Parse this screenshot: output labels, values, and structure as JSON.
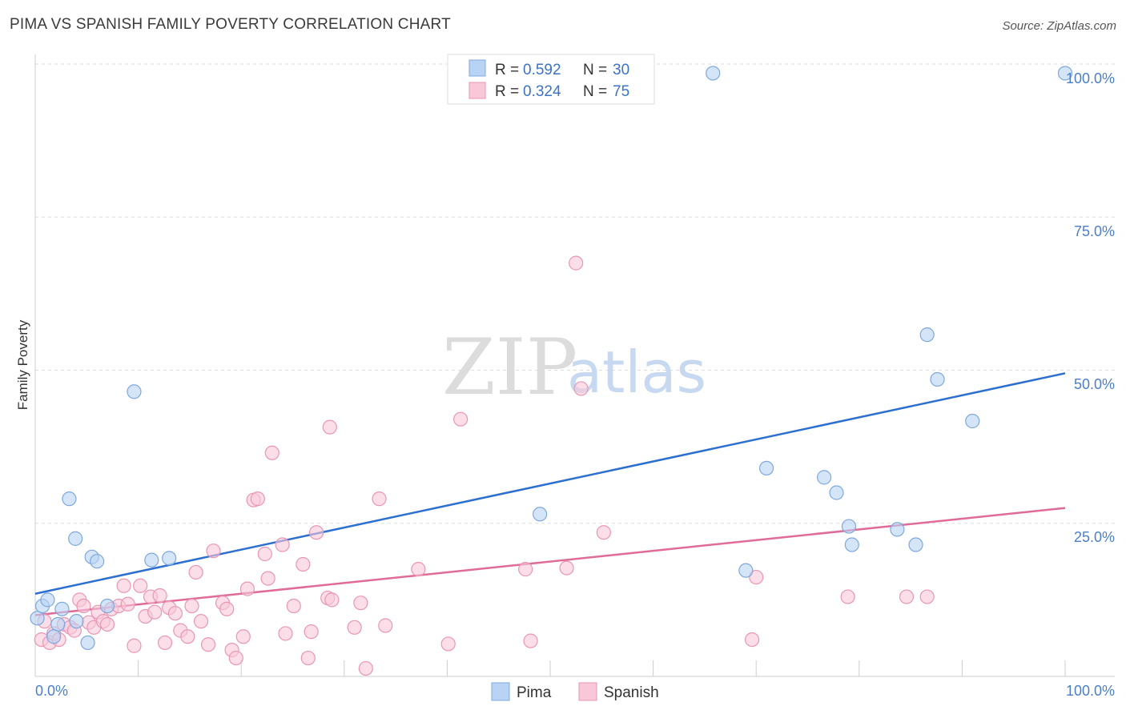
{
  "title": "PIMA VS SPANISH FAMILY POVERTY CORRELATION CHART",
  "source": "Source: ZipAtlas.com",
  "watermark": {
    "zip": "ZIP",
    "atlas": "atlas"
  },
  "legend_top": [
    {
      "r_label": "R =",
      "r_value": "0.592",
      "n_label": "N =",
      "n_value": "30"
    },
    {
      "r_label": "R =",
      "r_value": "0.324",
      "n_label": "N =",
      "n_value": "75"
    }
  ],
  "legend_bottom": [
    "Pima",
    "Spanish"
  ],
  "colors": {
    "pima_fill": "#b8d3f3",
    "pima_stroke": "#7fa8dc",
    "pima_line": "#2d6fd0",
    "spanish_fill": "#f8c8d8",
    "spanish_stroke": "#e996b4",
    "spanish_line": "#e06a98",
    "grid": "#dddddd",
    "tick_text": "#4a7fc8"
  },
  "chart_data": {
    "type": "scatter",
    "title": "PIMA VS SPANISH FAMILY POVERTY CORRELATION CHART",
    "xlabel": "",
    "ylabel": "Family Poverty",
    "xlim": [
      0,
      100
    ],
    "ylim": [
      0,
      100
    ],
    "x_tick_labels": [
      "0.0%",
      "100.0%"
    ],
    "y_tick_labels": [
      "25.0%",
      "50.0%",
      "75.0%",
      "100.0%"
    ],
    "y_ticks": [
      25,
      50,
      75,
      100
    ],
    "grid": "horizontal dashed",
    "legend_position": "top-center",
    "series": [
      {
        "name": "Pima",
        "r": 0.592,
        "n": 30,
        "trend": {
          "x": [
            0,
            100
          ],
          "y": [
            13.5,
            49.5
          ]
        },
        "points": [
          [
            0.2,
            9.5
          ],
          [
            0.7,
            11.5
          ],
          [
            1.2,
            12.5
          ],
          [
            2.2,
            8.5
          ],
          [
            1.8,
            6.5
          ],
          [
            2.6,
            11.0
          ],
          [
            3.3,
            29.0
          ],
          [
            3.9,
            22.5
          ],
          [
            4.0,
            9.0
          ],
          [
            5.1,
            5.5
          ],
          [
            5.5,
            19.5
          ],
          [
            6.0,
            18.8
          ],
          [
            7.0,
            11.5
          ],
          [
            9.6,
            46.5
          ],
          [
            11.3,
            19.0
          ],
          [
            13.0,
            19.3
          ],
          [
            49.0,
            26.5
          ],
          [
            65.8,
            98.5
          ],
          [
            69.0,
            17.3
          ],
          [
            71.0,
            34.0
          ],
          [
            76.6,
            32.5
          ],
          [
            77.8,
            30.0
          ],
          [
            79.0,
            24.5
          ],
          [
            79.3,
            21.5
          ],
          [
            83.7,
            24.0
          ],
          [
            85.5,
            21.5
          ],
          [
            86.6,
            55.8
          ],
          [
            87.6,
            48.5
          ],
          [
            91.0,
            41.7
          ],
          [
            100.0,
            98.5
          ]
        ]
      },
      {
        "name": "Spanish",
        "r": 0.324,
        "n": 75,
        "trend": {
          "x": [
            0,
            100
          ],
          "y": [
            10.0,
            27.5
          ]
        },
        "points": [
          [
            0.6,
            6.0
          ],
          [
            0.9,
            9.0
          ],
          [
            1.4,
            5.5
          ],
          [
            1.8,
            7.0
          ],
          [
            2.3,
            6.0
          ],
          [
            2.8,
            8.5
          ],
          [
            3.4,
            8.0
          ],
          [
            3.8,
            7.5
          ],
          [
            4.3,
            12.5
          ],
          [
            4.7,
            11.5
          ],
          [
            5.2,
            8.8
          ],
          [
            5.7,
            8.0
          ],
          [
            6.1,
            10.5
          ],
          [
            6.6,
            9.0
          ],
          [
            7.0,
            8.5
          ],
          [
            7.4,
            11.0
          ],
          [
            8.1,
            11.5
          ],
          [
            8.6,
            14.8
          ],
          [
            9.0,
            11.8
          ],
          [
            9.6,
            5.0
          ],
          [
            10.2,
            14.8
          ],
          [
            10.7,
            9.8
          ],
          [
            11.2,
            13.0
          ],
          [
            11.6,
            10.5
          ],
          [
            12.1,
            13.2
          ],
          [
            12.6,
            5.5
          ],
          [
            13.0,
            11.2
          ],
          [
            13.6,
            10.3
          ],
          [
            14.1,
            7.5
          ],
          [
            14.8,
            6.5
          ],
          [
            15.2,
            11.5
          ],
          [
            15.6,
            17.0
          ],
          [
            16.1,
            9.0
          ],
          [
            16.8,
            5.2
          ],
          [
            17.3,
            20.5
          ],
          [
            18.2,
            12.0
          ],
          [
            18.6,
            11.0
          ],
          [
            19.1,
            4.3
          ],
          [
            19.5,
            3.0
          ],
          [
            20.2,
            6.5
          ],
          [
            20.6,
            14.3
          ],
          [
            21.2,
            28.8
          ],
          [
            21.6,
            29.0
          ],
          [
            22.3,
            20.0
          ],
          [
            22.6,
            16.0
          ],
          [
            23.0,
            36.5
          ],
          [
            24.0,
            21.5
          ],
          [
            24.3,
            7.0
          ],
          [
            25.1,
            11.5
          ],
          [
            26.0,
            18.3
          ],
          [
            26.5,
            3.0
          ],
          [
            26.8,
            7.3
          ],
          [
            27.3,
            23.5
          ],
          [
            28.4,
            12.8
          ],
          [
            28.8,
            12.5
          ],
          [
            28.6,
            40.7
          ],
          [
            31.0,
            8.0
          ],
          [
            31.6,
            12.0
          ],
          [
            32.1,
            1.3
          ],
          [
            33.4,
            29.0
          ],
          [
            34.0,
            8.3
          ],
          [
            37.2,
            17.5
          ],
          [
            40.1,
            5.3
          ],
          [
            41.3,
            42.0
          ],
          [
            47.6,
            17.5
          ],
          [
            48.1,
            5.8
          ],
          [
            51.6,
            17.7
          ],
          [
            52.5,
            67.5
          ],
          [
            53.0,
            47.0
          ],
          [
            55.2,
            23.5
          ],
          [
            69.6,
            6.0
          ],
          [
            70.0,
            16.2
          ],
          [
            78.9,
            13.0
          ],
          [
            84.6,
            13.0
          ],
          [
            86.6,
            13.0
          ]
        ]
      }
    ]
  }
}
